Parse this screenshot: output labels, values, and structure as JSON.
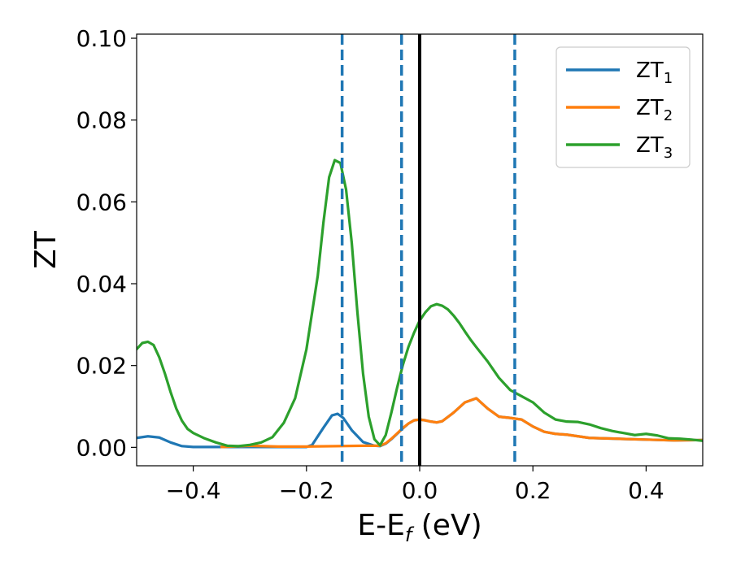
{
  "chart_data": {
    "type": "line",
    "xlabel": "E-E",
    "xlabel_sub": "f",
    "xlabel_unit": "(eV)",
    "ylabel": "ZT",
    "xlim": [
      -0.5,
      0.5
    ],
    "ylim": [
      -0.0045,
      0.101
    ],
    "xticks": [
      -0.4,
      -0.2,
      0.0,
      0.2,
      0.4
    ],
    "xtick_labels": [
      "−0.4",
      "−0.2",
      "0.0",
      "0.2",
      "0.4"
    ],
    "yticks": [
      0.0,
      0.02,
      0.04,
      0.06,
      0.08,
      0.1
    ],
    "ytick_labels": [
      "0.00",
      "0.02",
      "0.04",
      "0.06",
      "0.08",
      "0.10"
    ],
    "grid": false,
    "legend_position": "top-right",
    "vertical_lines": [
      {
        "x": 0.0,
        "style": "solid",
        "color": "#000000"
      },
      {
        "x": -0.137,
        "style": "dashed",
        "color": "#1f77b4"
      },
      {
        "x": -0.032,
        "style": "dashed",
        "color": "#1f77b4"
      },
      {
        "x": 0.168,
        "style": "dashed",
        "color": "#1f77b4"
      }
    ],
    "series": [
      {
        "name": "ZT",
        "name_sub": "1",
        "color": "#1f77b4",
        "x": [
          -0.5,
          -0.48,
          -0.46,
          -0.44,
          -0.42,
          -0.4,
          -0.35,
          -0.3,
          -0.25,
          -0.2,
          -0.19,
          -0.17,
          -0.155,
          -0.145,
          -0.135,
          -0.12,
          -0.1,
          -0.08,
          -0.07,
          -0.06,
          -0.05,
          -0.04,
          -0.03,
          -0.02,
          -0.01,
          0.0,
          0.01,
          0.02,
          0.03,
          0.04,
          0.06,
          0.08,
          0.1,
          0.12,
          0.14,
          0.16,
          0.18,
          0.2,
          0.22,
          0.24,
          0.26,
          0.3,
          0.35,
          0.4,
          0.45,
          0.5
        ],
        "y": [
          0.0023,
          0.0027,
          0.0024,
          0.0012,
          0.0003,
          0.0001,
          0.0001,
          0.0001,
          0.0001,
          0.0001,
          0.0006,
          0.0048,
          0.0078,
          0.0082,
          0.0072,
          0.0042,
          0.0013,
          0.0004,
          0.0003,
          0.0009,
          0.002,
          0.0033,
          0.0046,
          0.0058,
          0.0066,
          0.0068,
          0.0066,
          0.0063,
          0.0061,
          0.0064,
          0.0085,
          0.011,
          0.012,
          0.0095,
          0.0075,
          0.0072,
          0.0068,
          0.0051,
          0.0038,
          0.0033,
          0.0031,
          0.0023,
          0.0021,
          0.0019,
          0.0017,
          0.0018
        ]
      },
      {
        "name": "ZT",
        "name_sub": "2",
        "color": "#ff7f0e",
        "x": [
          -0.35,
          -0.3,
          -0.25,
          -0.2,
          -0.15,
          -0.1,
          -0.08,
          -0.07,
          -0.06,
          -0.05,
          -0.04,
          -0.03,
          -0.02,
          -0.01,
          0.0,
          0.01,
          0.02,
          0.03,
          0.04,
          0.06,
          0.08,
          0.1,
          0.12,
          0.14,
          0.16,
          0.18,
          0.2,
          0.22,
          0.24,
          0.26,
          0.3,
          0.35,
          0.4,
          0.45,
          0.5
        ],
        "y": [
          0.0001,
          0.0004,
          0.0002,
          0.0002,
          0.0003,
          0.0004,
          0.0004,
          0.0004,
          0.001,
          0.0021,
          0.0034,
          0.0047,
          0.0058,
          0.0066,
          0.0068,
          0.0066,
          0.0063,
          0.0061,
          0.0064,
          0.0085,
          0.011,
          0.012,
          0.0095,
          0.0075,
          0.0072,
          0.0068,
          0.0051,
          0.0038,
          0.0033,
          0.0031,
          0.0023,
          0.0021,
          0.0019,
          0.0017,
          0.0018
        ]
      },
      {
        "name": "ZT",
        "name_sub": "3",
        "color": "#2ca02c",
        "x": [
          -0.5,
          -0.49,
          -0.48,
          -0.47,
          -0.46,
          -0.45,
          -0.44,
          -0.43,
          -0.42,
          -0.41,
          -0.4,
          -0.38,
          -0.36,
          -0.34,
          -0.32,
          -0.3,
          -0.28,
          -0.26,
          -0.24,
          -0.22,
          -0.2,
          -0.18,
          -0.17,
          -0.16,
          -0.15,
          -0.14,
          -0.13,
          -0.12,
          -0.11,
          -0.1,
          -0.09,
          -0.08,
          -0.07,
          -0.06,
          -0.05,
          -0.04,
          -0.03,
          -0.02,
          -0.01,
          0.0,
          0.01,
          0.02,
          0.03,
          0.04,
          0.05,
          0.06,
          0.07,
          0.08,
          0.09,
          0.1,
          0.12,
          0.14,
          0.16,
          0.18,
          0.2,
          0.22,
          0.24,
          0.26,
          0.28,
          0.3,
          0.32,
          0.34,
          0.36,
          0.38,
          0.4,
          0.42,
          0.44,
          0.46,
          0.48,
          0.5
        ],
        "y": [
          0.024,
          0.0255,
          0.0258,
          0.025,
          0.022,
          0.018,
          0.0135,
          0.0095,
          0.0065,
          0.0045,
          0.0035,
          0.0022,
          0.0012,
          0.0004,
          0.0003,
          0.0006,
          0.0012,
          0.0025,
          0.006,
          0.012,
          0.024,
          0.042,
          0.055,
          0.066,
          0.0702,
          0.0695,
          0.063,
          0.05,
          0.033,
          0.018,
          0.0075,
          0.002,
          0.0005,
          0.003,
          0.0085,
          0.0145,
          0.02,
          0.0245,
          0.028,
          0.031,
          0.033,
          0.0345,
          0.035,
          0.0346,
          0.0337,
          0.0322,
          0.0304,
          0.0283,
          0.0263,
          0.0245,
          0.021,
          0.017,
          0.014,
          0.0125,
          0.011,
          0.0085,
          0.0068,
          0.0063,
          0.0062,
          0.0056,
          0.0047,
          0.004,
          0.0035,
          0.003,
          0.0033,
          0.0029,
          0.0022,
          0.0021,
          0.0019,
          0.0016
        ]
      }
    ]
  }
}
